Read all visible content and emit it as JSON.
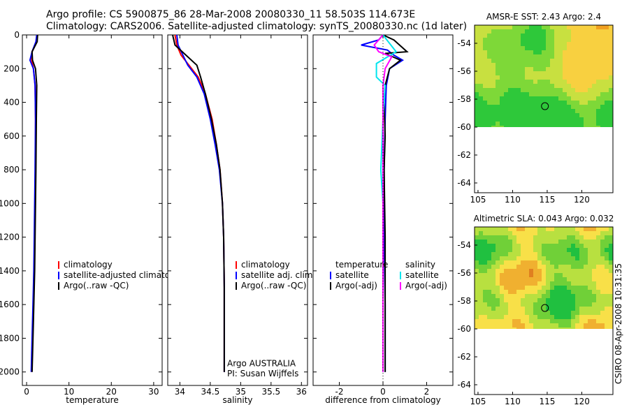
{
  "header": {
    "line1": "Argo profile: CS 5900875_86 28-Mar-2008 20080330_11 58.503S 114.673E",
    "line2": "Climatology: CARS2006. Satellite-adjusted climatology: synTS_20080330.nc (1d later)"
  },
  "footer_stamp": "CSIRO 08-Apr-2008 10:31:35",
  "colors": {
    "clim": "#ff0000",
    "sat": "#0000ff",
    "argo": "#000000",
    "cyan": "#00e5ee",
    "magenta": "#ff00ff"
  },
  "chart_data": [
    {
      "type": "line",
      "id": "temperature",
      "xlabel": "temperature",
      "xlim": [
        -1,
        32
      ],
      "ylim": [
        0,
        2080
      ],
      "xticks": [
        0,
        10,
        20,
        30
      ],
      "yticks": [
        0,
        200,
        400,
        600,
        800,
        1000,
        1200,
        1400,
        1600,
        1800,
        2000
      ],
      "legend": {
        "position": "middle-right",
        "entries": [
          "climatology",
          "satellite-adjusted climatology",
          "Argo(..raw -QC)"
        ]
      },
      "series": [
        {
          "name": "climatology",
          "color": "#ff0000",
          "x": [
            2.5,
            2.3,
            1.3,
            1.2,
            1.6,
            2.0,
            2.1,
            2.1,
            2.0,
            1.9,
            1.8,
            1.6,
            1.4,
            1.2
          ],
          "depth": [
            0,
            40,
            100,
            150,
            200,
            300,
            500,
            800,
            1000,
            1200,
            1400,
            1600,
            1800,
            2000
          ]
        },
        {
          "name": "satellite-adjusted climatology",
          "color": "#0000ff",
          "x": [
            2.4,
            2.2,
            1.3,
            0.8,
            1.6,
            2.0,
            2.1,
            2.0,
            1.9,
            1.8,
            1.7,
            1.5,
            1.3,
            1.1
          ],
          "depth": [
            0,
            40,
            100,
            150,
            200,
            300,
            500,
            800,
            1000,
            1200,
            1400,
            1600,
            1800,
            2000
          ]
        },
        {
          "name": "Argo(..raw -QC)",
          "color": "#000000",
          "x": [
            2.6,
            2.5,
            1.3,
            1.4,
            2.1,
            2.4,
            2.3,
            2.2,
            2.1,
            2.0,
            1.9,
            1.7,
            1.5,
            1.3
          ],
          "depth": [
            0,
            40,
            100,
            150,
            200,
            300,
            500,
            800,
            1000,
            1200,
            1400,
            1600,
            1800,
            2000
          ]
        }
      ]
    },
    {
      "type": "line",
      "id": "salinity",
      "xlabel": "salinity",
      "xlim": [
        33.8,
        36.1
      ],
      "ylim": [
        0,
        2080
      ],
      "xticks": [
        34,
        34.5,
        35,
        35.5,
        36
      ],
      "yticks": [],
      "legend": {
        "position": "middle-right",
        "entries": [
          "climatology",
          "satellite adj. clim.",
          "Argo(..raw -QC)"
        ]
      },
      "annotation": [
        "Argo AUSTRALIA",
        "PI: Susan Wijffels"
      ],
      "series": [
        {
          "name": "climatology",
          "color": "#ff0000",
          "x": [
            33.92,
            33.95,
            34.02,
            34.15,
            34.3,
            34.42,
            34.53,
            34.6,
            34.66,
            34.7,
            34.72,
            34.73,
            34.73,
            34.73
          ],
          "depth": [
            0,
            60,
            120,
            180,
            250,
            350,
            500,
            650,
            800,
            1000,
            1200,
            1500,
            1800,
            2000
          ]
        },
        {
          "name": "satellite adj. clim.",
          "color": "#0000ff",
          "x": [
            33.95,
            33.97,
            34.05,
            34.13,
            34.28,
            34.4,
            34.5,
            34.58,
            34.65,
            34.7,
            34.72,
            34.73,
            34.73,
            34.73
          ],
          "depth": [
            0,
            60,
            120,
            180,
            250,
            350,
            500,
            650,
            800,
            1000,
            1200,
            1500,
            1800,
            2000
          ]
        },
        {
          "name": "Argo(..raw -QC)",
          "color": "#000000",
          "x": [
            33.88,
            33.92,
            34.1,
            34.28,
            34.34,
            34.42,
            34.52,
            34.6,
            34.66,
            34.7,
            34.72,
            34.73,
            34.73,
            34.73
          ],
          "depth": [
            0,
            60,
            120,
            180,
            250,
            350,
            500,
            650,
            800,
            1000,
            1200,
            1500,
            1800,
            2000
          ]
        }
      ]
    },
    {
      "type": "line",
      "id": "difference",
      "xlabel": "difference from climatology",
      "xlim": [
        -3.2,
        3.2
      ],
      "ylim": [
        0,
        2080
      ],
      "xticks": [
        -2,
        0,
        2
      ],
      "yticks": [],
      "legend": {
        "position": "middle",
        "headers": [
          "temperature",
          "salinity"
        ],
        "entries": [
          "satellite",
          "Argo(-adj)",
          "satellite",
          "Argo(-adj)"
        ]
      },
      "series": [
        {
          "name": "temperature satellite",
          "color": "#0000ff",
          "x": [
            0,
            -0.2,
            -1.0,
            0.2,
            0.5,
            0.9,
            0.3,
            0.15,
            0.1,
            0.05,
            0.05,
            0.1,
            0.1
          ],
          "depth": [
            0,
            30,
            60,
            90,
            120,
            150,
            200,
            300,
            500,
            800,
            1200,
            1600,
            2000
          ]
        },
        {
          "name": "temperature Argo(-adj)",
          "color": "#000000",
          "x": [
            0,
            0.5,
            1.1,
            0.1,
            0.8,
            0.3,
            0.1,
            0.05,
            0.1,
            0.05,
            0.1,
            0.1,
            0.1
          ],
          "depth": [
            0,
            30,
            100,
            110,
            150,
            200,
            300,
            400,
            600,
            800,
            1200,
            1600,
            2000
          ]
        },
        {
          "name": "salinity satellite",
          "color": "#00e5ee",
          "x": [
            0,
            0.3,
            0.6,
            -0.3,
            -0.3,
            0.1,
            0.0,
            -0.1,
            0.0,
            0.0,
            0.0
          ],
          "depth": [
            0,
            50,
            100,
            170,
            250,
            300,
            500,
            800,
            1000,
            1400,
            2000
          ]
        },
        {
          "name": "salinity Argo(-adj)",
          "color": "#ff00ff",
          "x": [
            0,
            -0.4,
            -0.2,
            0.4,
            0.1,
            0.0,
            0.0,
            0.0,
            0.0
          ],
          "depth": [
            0,
            60,
            100,
            130,
            200,
            300,
            600,
            1200,
            2000
          ]
        }
      ]
    },
    {
      "type": "heatmap",
      "id": "sst-map",
      "title": "AMSR-E SST: 2.43 Argo: 2.4",
      "xlim": [
        104.5,
        124.5
      ],
      "ylim": [
        -64.7,
        -52.7
      ],
      "xticks": [
        105,
        110,
        115,
        120
      ],
      "yticks": [
        -54,
        -56,
        -58,
        -60,
        -62,
        -64
      ],
      "data_lat_range": [
        -60,
        -52.7
      ],
      "marker": {
        "lon": 114.673,
        "lat": -58.503
      },
      "palette": "sst"
    },
    {
      "type": "heatmap",
      "id": "sla-map",
      "title": "Altimetric SLA: 0.043 Argo: 0.032",
      "xlim": [
        104.5,
        124.5
      ],
      "ylim": [
        -64.7,
        -52.7
      ],
      "xticks": [
        105,
        110,
        115,
        120
      ],
      "yticks": [
        -54,
        -56,
        -58,
        -60,
        -62,
        -64
      ],
      "data_lat_range": [
        -60,
        -52.7
      ],
      "marker": {
        "lon": 114.673,
        "lat": -58.503
      },
      "palette": "sla"
    }
  ]
}
